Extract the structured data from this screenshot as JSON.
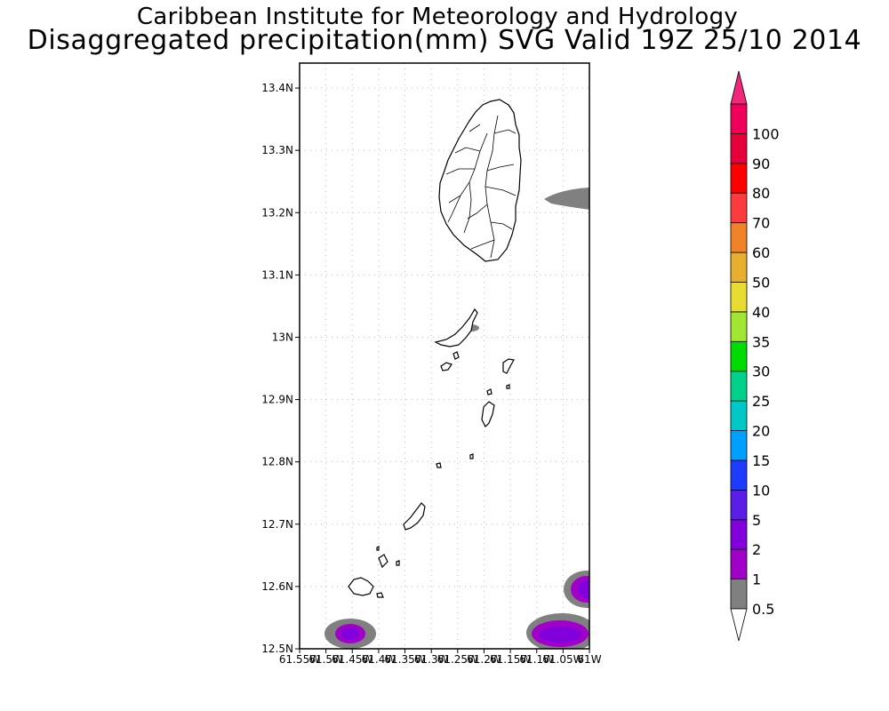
{
  "title": {
    "line1": "Caribbean Institute for Meteorology and Hydrology",
    "line2": "Disaggregated precipitation(mm) SVG Valid 19Z 25/10 2014"
  },
  "map": {
    "lat_range": [
      12.5,
      13.44
    ],
    "lon_range": [
      -61.55,
      -61.0
    ],
    "lat_ticks": [
      "12.5N",
      "12.6N",
      "12.7N",
      "12.8N",
      "12.9N",
      "13N",
      "13.1N",
      "13.2N",
      "13.3N",
      "13.4N"
    ],
    "lon_ticks": [
      "61.55W",
      "61.5W",
      "61.45W",
      "61.4W",
      "61.35W",
      "61.3W",
      "61.25W",
      "61.2W",
      "61.15W",
      "61.1W",
      "61.05W",
      "61W"
    ],
    "grid": true
  },
  "colorbar": {
    "levels": [
      "0.5",
      "1",
      "2",
      "5",
      "10",
      "15",
      "20",
      "25",
      "30",
      "35",
      "40",
      "50",
      "60",
      "70",
      "80",
      "90",
      "100"
    ],
    "colors": [
      "#808080",
      "#a000c8",
      "#8200dc",
      "#5a1ee6",
      "#1e3cff",
      "#00a0ff",
      "#00c8c8",
      "#00d28c",
      "#00dc00",
      "#a0e632",
      "#e6dc32",
      "#e6af2d",
      "#f08228",
      "#fa3c3c",
      "#ff0000",
      "#e6003c",
      "#f0005a"
    ],
    "top_color": "#f0287a",
    "bottom_color": "#ffffff"
  },
  "precip_areas": [
    {
      "name": "sw-cell",
      "levels": [
        "0.5",
        "2"
      ]
    },
    {
      "name": "se-cell",
      "levels": [
        "0.5",
        "2"
      ]
    },
    {
      "name": "east-edge-cell",
      "levels": [
        "0.5",
        "2"
      ]
    },
    {
      "name": "ne-streak",
      "levels": [
        "0.5"
      ]
    },
    {
      "name": "bequia-speck",
      "levels": [
        "0.5"
      ]
    }
  ]
}
